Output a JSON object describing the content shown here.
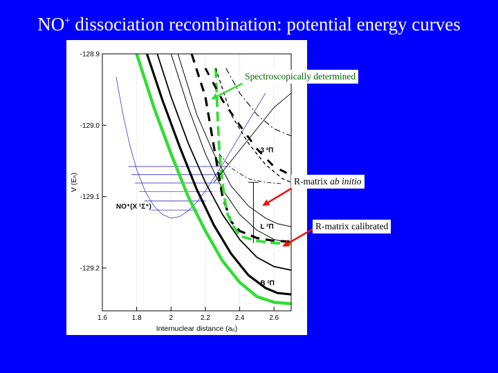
{
  "slide": {
    "title_prefix": "NO",
    "title_sup": "+",
    "title_rest": " dissociation recombination: potential energy curves"
  },
  "callouts": {
    "spectroscopic": "Spectroscopically determined",
    "ab_initio_prefix": "R-matrix ",
    "ab_initio_italic": "ab initio",
    "calibrated": "R-matrix calibrated"
  },
  "colors": {
    "background": "#0000ff",
    "green": "#33dd33",
    "red": "#ee1111",
    "blue": "#3333cc"
  },
  "chart_data": {
    "type": "line",
    "xlabel": "Internuclear distance (a₀)",
    "ylabel": "V (Eₕ)",
    "xlim": [
      1.6,
      2.7
    ],
    "ylim": [
      -129.26,
      -128.9
    ],
    "xticks": [
      "1.6",
      "1.8",
      "2",
      "2.2",
      "2.4",
      "2.6"
    ],
    "yticks": [
      "-128.9",
      "-129.0",
      "-129.1",
      "-129.2"
    ],
    "state_labels": [
      {
        "text": "NO⁺(X ¹Σ⁺)",
        "x": 1.68,
        "y": -129.117
      },
      {
        "text": "3 ²Π",
        "x": 2.52,
        "y": -129.038
      },
      {
        "text": "L ²Π",
        "x": 2.52,
        "y": -129.145
      },
      {
        "text": "B ²Π",
        "x": 2.52,
        "y": -129.224
      }
    ],
    "series": [
      {
        "style": "thin-blue",
        "x": [
          1.68,
          1.72,
          1.76,
          1.8,
          1.85,
          1.9,
          1.95,
          2.0,
          2.05,
          2.1,
          2.15,
          2.2,
          2.3,
          2.4,
          2.5,
          2.55
        ],
        "y": [
          -128.932,
          -128.985,
          -129.028,
          -129.062,
          -129.093,
          -129.113,
          -129.125,
          -129.13,
          -129.128,
          -129.12,
          -129.108,
          -129.092,
          -129.055,
          -129.015,
          -128.975,
          -128.955
        ]
      },
      {
        "style": "green",
        "x": [
          1.8,
          1.9,
          2.0,
          2.1,
          2.2,
          2.3,
          2.4,
          2.5,
          2.6,
          2.7
        ],
        "y": [
          -128.9,
          -128.975,
          -129.04,
          -129.1,
          -129.148,
          -129.19,
          -129.22,
          -129.24,
          -129.248,
          -129.25
        ]
      },
      {
        "style": "thick",
        "x": [
          1.86,
          1.95,
          2.05,
          2.15,
          2.25,
          2.35,
          2.45,
          2.55,
          2.62,
          2.7
        ],
        "y": [
          -128.9,
          -128.965,
          -129.03,
          -129.09,
          -129.14,
          -129.18,
          -129.21,
          -129.228,
          -129.235,
          -129.237
        ]
      },
      {
        "style": "medium",
        "x": [
          1.92,
          2.0,
          2.1,
          2.2,
          2.3,
          2.4,
          2.5,
          2.6,
          2.7
        ],
        "y": [
          -128.9,
          -128.96,
          -129.025,
          -129.08,
          -129.125,
          -129.16,
          -129.185,
          -129.198,
          -129.203
        ]
      },
      {
        "style": "thin",
        "x": [
          2.0,
          2.1,
          2.2,
          2.3,
          2.4,
          2.5,
          2.6,
          2.7
        ],
        "y": [
          -128.9,
          -128.975,
          -129.04,
          -129.09,
          -129.125,
          -129.147,
          -129.16,
          -129.165
        ]
      },
      {
        "style": "thin",
        "x": [
          2.04,
          2.15,
          2.25,
          2.35,
          2.45,
          2.55,
          2.62,
          2.7
        ],
        "y": [
          -128.9,
          -128.985,
          -129.04,
          -129.085,
          -129.113,
          -129.13,
          -129.138,
          -129.142
        ]
      },
      {
        "style": "dashed-thick",
        "x": [
          2.12,
          2.2,
          2.25,
          2.3,
          2.35,
          2.4,
          2.5,
          2.6,
          2.7
        ],
        "y": [
          -128.9,
          -128.96,
          -129.03,
          -129.1,
          -129.135,
          -129.148,
          -129.158,
          -129.162,
          -129.163
        ]
      },
      {
        "style": "green-dashed",
        "x": [
          2.26,
          2.27,
          2.28,
          2.29,
          2.3,
          2.31,
          2.33,
          2.36,
          2.4,
          2.5,
          2.6,
          2.7
        ],
        "y": [
          -128.92,
          -128.98,
          -129.03,
          -129.06,
          -129.08,
          -129.1,
          -129.125,
          -129.14,
          -129.155,
          -129.162,
          -129.165,
          -129.166
        ]
      },
      {
        "style": "dash-wide",
        "x": [
          2.2,
          2.3,
          2.4,
          2.5,
          2.6,
          2.7
        ],
        "y": [
          -128.92,
          -128.965,
          -129.0,
          -129.033,
          -129.058,
          -129.07
        ]
      },
      {
        "style": "dash-thin",
        "x": [
          2.26,
          2.35,
          2.45,
          2.55,
          2.65,
          2.7
        ],
        "y": [
          -128.92,
          -128.985,
          -129.025,
          -129.055,
          -129.075,
          -129.08
        ]
      },
      {
        "style": "dash-dot",
        "x": [
          2.32,
          2.4,
          2.5,
          2.6,
          2.7
        ],
        "y": [
          -128.92,
          -128.955,
          -128.985,
          -129.005,
          -129.015
        ]
      },
      {
        "style": "dash-dot-thin",
        "x": [
          2.28,
          2.35,
          2.45,
          2.55,
          2.65
        ],
        "y": [
          -129.04,
          -129.06,
          -129.075,
          -129.08,
          -129.082
        ]
      },
      {
        "style": "thin-solid",
        "x": [
          2.25,
          2.3,
          2.4,
          2.5,
          2.6,
          2.7
        ],
        "y": [
          -129.08,
          -129.065,
          -129.035,
          -129.005,
          -128.975,
          -128.955
        ]
      }
    ],
    "vibrational_levels": [
      {
        "x1": 1.885,
        "x2": 2.155,
        "y": -129.119
      },
      {
        "x1": 1.845,
        "x2": 2.2,
        "y": -129.106
      },
      {
        "x1": 1.815,
        "x2": 2.24,
        "y": -129.093
      },
      {
        "x1": 1.79,
        "x2": 2.275,
        "y": -129.081
      },
      {
        "x1": 1.77,
        "x2": 2.305,
        "y": -129.069
      },
      {
        "x1": 1.752,
        "x2": 2.33,
        "y": -129.058
      }
    ]
  }
}
